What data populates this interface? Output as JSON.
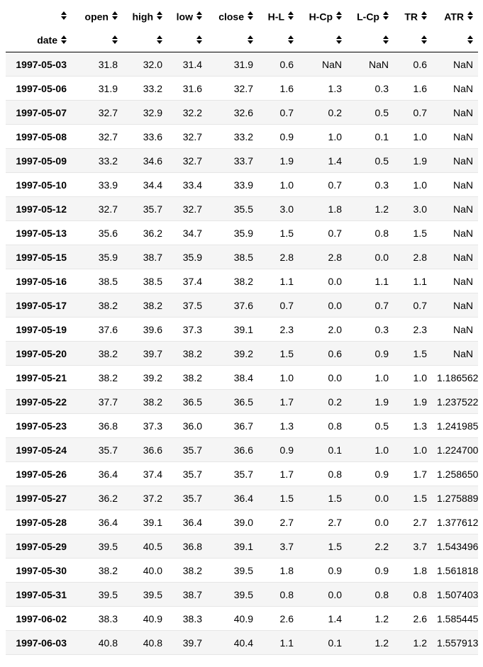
{
  "table": {
    "columns": [
      {
        "key": "index",
        "label": ""
      },
      {
        "key": "open",
        "label": "open"
      },
      {
        "key": "high",
        "label": "high"
      },
      {
        "key": "low",
        "label": "low"
      },
      {
        "key": "close",
        "label": "close"
      },
      {
        "key": "hl",
        "label": "H-L"
      },
      {
        "key": "hcp",
        "label": "H-Cp"
      },
      {
        "key": "lcp",
        "label": "L-Cp"
      },
      {
        "key": "tr",
        "label": "TR"
      },
      {
        "key": "atr",
        "label": "ATR"
      }
    ],
    "index_label": "date",
    "sort_icon": "sort-arrows-icon",
    "rows": [
      [
        "1997-05-03",
        "31.8",
        "32.0",
        "31.4",
        "31.9",
        "0.6",
        "NaN",
        "NaN",
        "0.6",
        "NaN"
      ],
      [
        "1997-05-06",
        "31.9",
        "33.2",
        "31.6",
        "32.7",
        "1.6",
        "1.3",
        "0.3",
        "1.6",
        "NaN"
      ],
      [
        "1997-05-07",
        "32.7",
        "32.9",
        "32.2",
        "32.6",
        "0.7",
        "0.2",
        "0.5",
        "0.7",
        "NaN"
      ],
      [
        "1997-05-08",
        "32.7",
        "33.6",
        "32.7",
        "33.2",
        "0.9",
        "1.0",
        "0.1",
        "1.0",
        "NaN"
      ],
      [
        "1997-05-09",
        "33.2",
        "34.6",
        "32.7",
        "33.7",
        "1.9",
        "1.4",
        "0.5",
        "1.9",
        "NaN"
      ],
      [
        "1997-05-10",
        "33.9",
        "34.4",
        "33.4",
        "33.9",
        "1.0",
        "0.7",
        "0.3",
        "1.0",
        "NaN"
      ],
      [
        "1997-05-12",
        "32.7",
        "35.7",
        "32.7",
        "35.5",
        "3.0",
        "1.8",
        "1.2",
        "3.0",
        "NaN"
      ],
      [
        "1997-05-13",
        "35.6",
        "36.2",
        "34.7",
        "35.9",
        "1.5",
        "0.7",
        "0.8",
        "1.5",
        "NaN"
      ],
      [
        "1997-05-15",
        "35.9",
        "38.7",
        "35.9",
        "38.5",
        "2.8",
        "2.8",
        "0.0",
        "2.8",
        "NaN"
      ],
      [
        "1997-05-16",
        "38.5",
        "38.5",
        "37.4",
        "38.2",
        "1.1",
        "0.0",
        "1.1",
        "1.1",
        "NaN"
      ],
      [
        "1997-05-17",
        "38.2",
        "38.2",
        "37.5",
        "37.6",
        "0.7",
        "0.0",
        "0.7",
        "0.7",
        "NaN"
      ],
      [
        "1997-05-19",
        "37.6",
        "39.6",
        "37.3",
        "39.1",
        "2.3",
        "2.0",
        "0.3",
        "2.3",
        "NaN"
      ],
      [
        "1997-05-20",
        "38.2",
        "39.7",
        "38.2",
        "39.2",
        "1.5",
        "0.6",
        "0.9",
        "1.5",
        "NaN"
      ],
      [
        "1997-05-21",
        "38.2",
        "39.2",
        "38.2",
        "38.4",
        "1.0",
        "0.0",
        "1.0",
        "1.0",
        "1.186562"
      ],
      [
        "1997-05-22",
        "37.7",
        "38.2",
        "36.5",
        "36.5",
        "1.7",
        "0.2",
        "1.9",
        "1.9",
        "1.237522"
      ],
      [
        "1997-05-23",
        "36.8",
        "37.3",
        "36.0",
        "36.7",
        "1.3",
        "0.8",
        "0.5",
        "1.3",
        "1.241985"
      ],
      [
        "1997-05-24",
        "35.7",
        "36.6",
        "35.7",
        "36.6",
        "0.9",
        "0.1",
        "1.0",
        "1.0",
        "1.224700"
      ],
      [
        "1997-05-26",
        "36.4",
        "37.4",
        "35.7",
        "35.7",
        "1.7",
        "0.8",
        "0.9",
        "1.7",
        "1.258650"
      ],
      [
        "1997-05-27",
        "36.2",
        "37.2",
        "35.7",
        "36.4",
        "1.5",
        "1.5",
        "0.0",
        "1.5",
        "1.275889"
      ],
      [
        "1997-05-28",
        "36.4",
        "39.1",
        "36.4",
        "39.0",
        "2.7",
        "2.7",
        "0.0",
        "2.7",
        "1.377612"
      ],
      [
        "1997-05-29",
        "39.5",
        "40.5",
        "36.8",
        "39.1",
        "3.7",
        "1.5",
        "2.2",
        "3.7",
        "1.543496"
      ],
      [
        "1997-05-30",
        "38.2",
        "40.0",
        "38.2",
        "39.5",
        "1.8",
        "0.9",
        "0.9",
        "1.8",
        "1.561818"
      ],
      [
        "1997-05-31",
        "39.5",
        "39.5",
        "38.7",
        "39.5",
        "0.8",
        "0.0",
        "0.8",
        "0.8",
        "1.507403"
      ],
      [
        "1997-06-02",
        "38.3",
        "40.9",
        "38.3",
        "40.9",
        "2.6",
        "1.4",
        "1.2",
        "2.6",
        "1.585445"
      ],
      [
        "1997-06-03",
        "40.8",
        "40.8",
        "39.7",
        "40.4",
        "1.1",
        "0.1",
        "1.2",
        "1.2",
        "1.557913"
      ]
    ]
  }
}
